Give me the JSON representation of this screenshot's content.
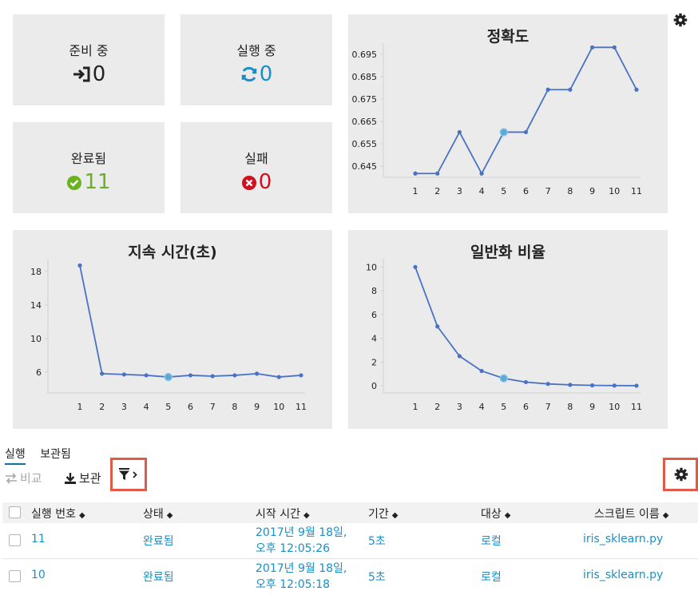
{
  "stats": {
    "preparing": {
      "label": "준비 중",
      "value": "0",
      "icon": "sign-in-icon",
      "color": "#222222"
    },
    "running": {
      "label": "실행 중",
      "value": "0",
      "icon": "refresh-icon",
      "color": "#1b8fc7"
    },
    "completed": {
      "label": "완료됨",
      "value": "11",
      "icon": "check-circle-icon",
      "color": "#6bb31c"
    },
    "failed": {
      "label": "실패",
      "value": "0",
      "icon": "x-circle-icon",
      "color": "#d0101e"
    }
  },
  "chart_data": [
    {
      "type": "line",
      "title": "정확도",
      "x": [
        1,
        2,
        3,
        4,
        5,
        6,
        7,
        8,
        9,
        10,
        11
      ],
      "y": [
        0.6417,
        0.6417,
        0.6602,
        0.6417,
        0.6602,
        0.6602,
        0.6792,
        0.6792,
        0.6981,
        0.6981,
        0.6792
      ],
      "yticks": [
        0.645,
        0.655,
        0.665,
        0.675,
        0.685,
        0.695
      ],
      "ylim": [
        0.64,
        0.7
      ],
      "highlight_index": 4,
      "line_color": "#4a72c4",
      "grid": false
    },
    {
      "type": "line",
      "title": "지속 시간(초)",
      "x": [
        1,
        2,
        3,
        4,
        5,
        6,
        7,
        8,
        9,
        10,
        11
      ],
      "y": [
        18.7,
        5.8,
        5.7,
        5.6,
        5.4,
        5.6,
        5.5,
        5.6,
        5.8,
        5.4,
        5.6
      ],
      "yticks": [
        6,
        10,
        14,
        18
      ],
      "ylim": [
        3.5,
        19.5
      ],
      "highlight_index": 4,
      "line_color": "#4a72c4",
      "grid": false
    },
    {
      "type": "line",
      "title": "일반화 비율",
      "x": [
        1,
        2,
        3,
        4,
        5,
        6,
        7,
        8,
        9,
        10,
        11
      ],
      "y": [
        10.0,
        5.0,
        2.5,
        1.25,
        0.63,
        0.31,
        0.16,
        0.08,
        0.04,
        0.02,
        0.01
      ],
      "yticks": [
        0,
        2,
        4,
        6,
        8,
        10
      ],
      "ylim": [
        -0.6,
        10.7
      ],
      "highlight_index": 4,
      "line_color": "#4a72c4",
      "grid": false
    }
  ],
  "tabs": [
    {
      "label": "실행",
      "active": true
    },
    {
      "label": "보관됨",
      "active": false
    }
  ],
  "toolbar": {
    "compare_label": "비교",
    "archive_label": "보관"
  },
  "table": {
    "columns": [
      "실행 번호",
      "상태",
      "시작 시간",
      "기간",
      "대상",
      "스크립트 이름"
    ],
    "rows": [
      {
        "run": "11",
        "status": "완료됨",
        "start_line1": "2017년 9월 18일,",
        "start_line2": "오후 12:05:26",
        "duration": "5초",
        "target": "로컬",
        "script": "iris_sklearn.py"
      },
      {
        "run": "10",
        "status": "완료됨",
        "start_line1": "2017년 9월 18일,",
        "start_line2": "오후 12:05:18",
        "duration": "5초",
        "target": "로컬",
        "script": "iris_sklearn.py"
      }
    ]
  }
}
